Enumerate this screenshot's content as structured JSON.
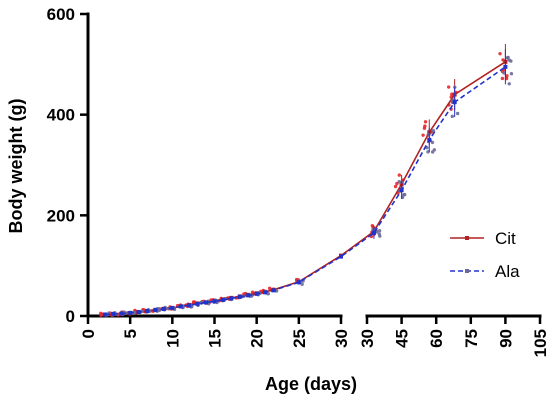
{
  "chart_data": {
    "type": "line",
    "xlabel": "Age (days)",
    "ylabel": "Body weight (g)",
    "ylim": [
      0,
      600
    ],
    "y_ticks": [
      "0",
      "200",
      "400",
      "600"
    ],
    "x_segments": [
      {
        "xlim": [
          0,
          30
        ],
        "ticks": [
          "0",
          "5",
          "10",
          "15",
          "20",
          "25",
          "30"
        ]
      },
      {
        "xlim": [
          30,
          105
        ],
        "ticks": [
          "30",
          "45",
          "60",
          "75",
          "90",
          "105"
        ]
      }
    ],
    "legend_position": "right",
    "series": [
      {
        "name": "Cit",
        "color": "#b22222",
        "dash": "solid",
        "marker_color": "#e8262a",
        "x": [
          2,
          3,
          4,
          5,
          6,
          7,
          8,
          9,
          10,
          11,
          12,
          13,
          14,
          15,
          16,
          17,
          18,
          19,
          20,
          21,
          22,
          25,
          30,
          33,
          45,
          57,
          68,
          90
        ],
        "y": [
          3,
          4,
          5,
          6,
          8,
          10,
          12,
          14,
          16,
          19,
          22,
          25,
          27,
          30,
          33,
          36,
          39,
          42,
          45,
          48,
          52,
          68,
          120,
          168,
          262,
          365,
          440,
          505
        ]
      },
      {
        "name": "Ala",
        "color": "#2233cc",
        "dash": "dashed",
        "marker_color": "#6a6a9a",
        "x": [
          2,
          3,
          4,
          5,
          6,
          7,
          8,
          9,
          10,
          11,
          12,
          13,
          14,
          15,
          16,
          17,
          18,
          19,
          20,
          21,
          22,
          25,
          30,
          33,
          45,
          57,
          68,
          90
        ],
        "y": [
          3,
          4,
          5,
          6,
          8,
          10,
          12,
          14,
          16,
          19,
          21,
          24,
          27,
          29,
          32,
          35,
          38,
          41,
          44,
          47,
          51,
          67,
          118,
          165,
          250,
          350,
          425,
          495
        ]
      }
    ]
  }
}
